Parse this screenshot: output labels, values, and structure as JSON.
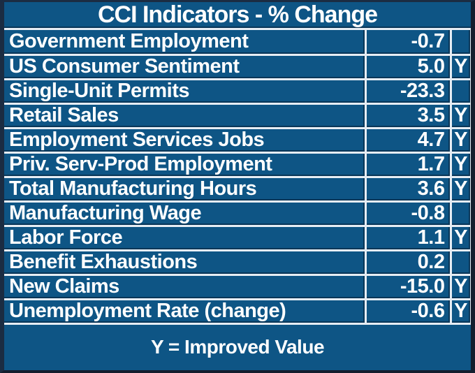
{
  "chart_data": {
    "type": "table",
    "title": "CCI Indicators - % Change",
    "footer_note": "Y = Improved Value",
    "flag_meaning": "Y indicates an improved value",
    "layout": {
      "grid": "on",
      "value_align": "right",
      "title_position": "top-center",
      "footer_position": "bottom-center"
    },
    "colors": {
      "background": "#0e5585",
      "frame": "#1b2c42",
      "gridline": "#e6edf4",
      "gridline_shadow": "#07223a",
      "text": "#ffffff"
    },
    "rows": [
      {
        "name": "Government Employment",
        "value": "-0.7",
        "flag": ""
      },
      {
        "name": "US Consumer Sentiment",
        "value": "5.0",
        "flag": "Y"
      },
      {
        "name": "Single-Unit Permits",
        "value": "-23.3",
        "flag": ""
      },
      {
        "name": "Retail Sales",
        "value": "3.5",
        "flag": "Y"
      },
      {
        "name": "Employment Services Jobs",
        "value": "4.7",
        "flag": "Y"
      },
      {
        "name": "Priv. Serv-Prod Employment",
        "value": "1.7",
        "flag": "Y"
      },
      {
        "name": "Total Manufacturing Hours",
        "value": "3.6",
        "flag": "Y"
      },
      {
        "name": "Manufacturing Wage",
        "value": "-0.8",
        "flag": ""
      },
      {
        "name": "Labor Force",
        "value": "1.1",
        "flag": "Y"
      },
      {
        "name": "Benefit Exhaustions",
        "value": "0.2",
        "flag": ""
      },
      {
        "name": "New Claims",
        "value": "-15.0",
        "flag": "Y"
      },
      {
        "name": "Unemployment Rate (change)",
        "value": "-0.6",
        "flag": "Y"
      }
    ]
  }
}
